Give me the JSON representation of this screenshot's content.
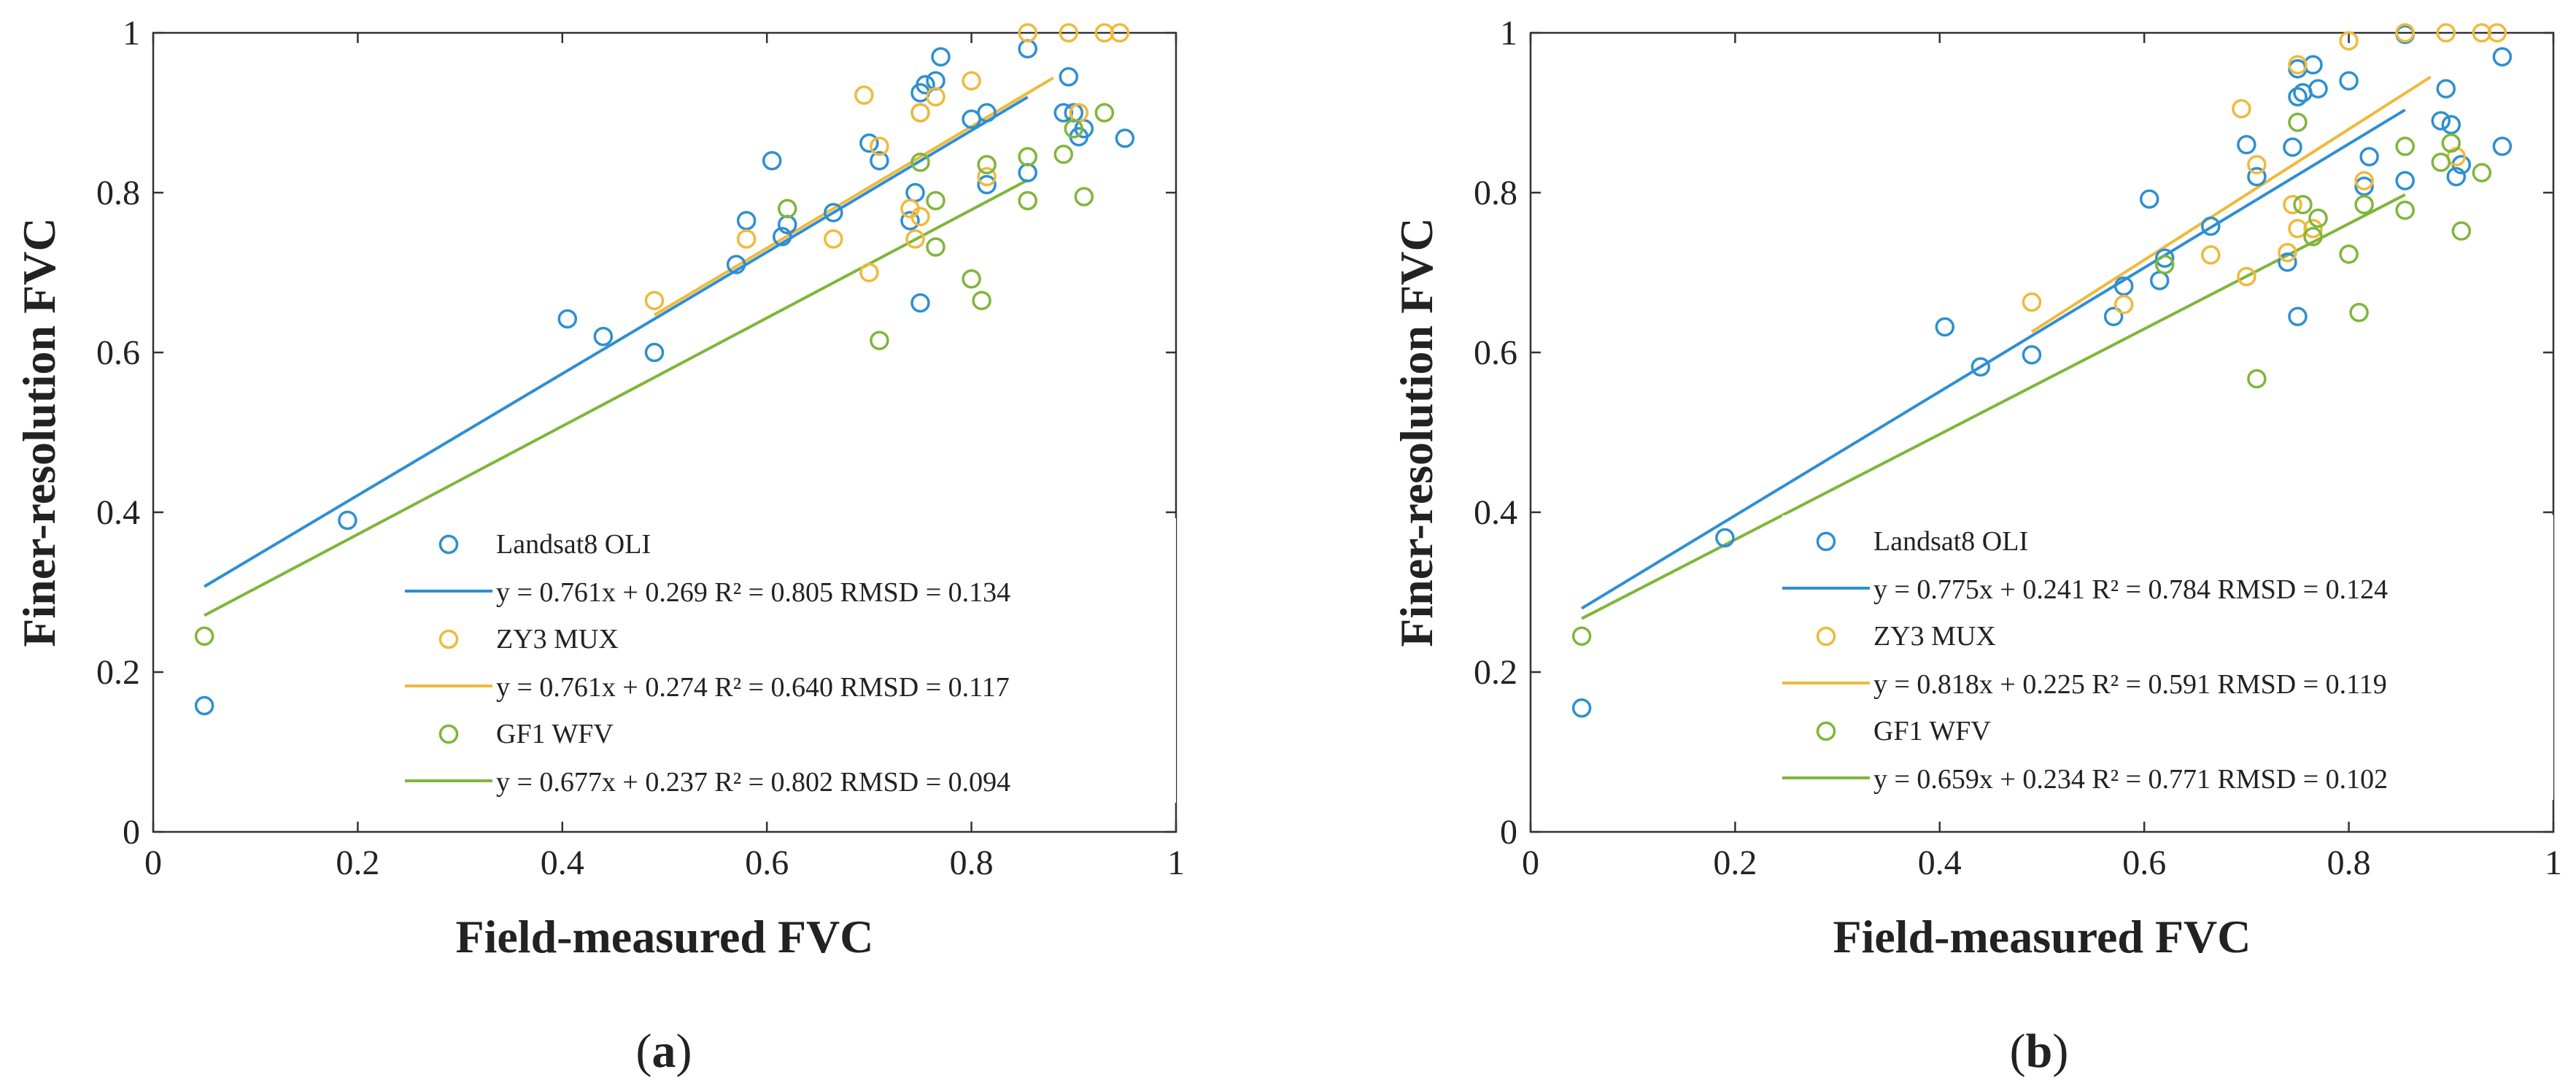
{
  "figure": {
    "panels": [
      {
        "label_letter": "a"
      },
      {
        "label_letter": "b"
      }
    ]
  },
  "chart_data": [
    {
      "type": "scatter",
      "panel": "(a)",
      "xlabel": "Field-measured FVC",
      "ylabel": "Finer-resolution FVC",
      "xlim": [
        0,
        1
      ],
      "ylim": [
        0,
        1
      ],
      "xticks": [
        "0",
        "0.2",
        "0.4",
        "0.6",
        "0.8",
        "1"
      ],
      "yticks": [
        "0",
        "0.2",
        "0.4",
        "0.6",
        "0.8",
        "1"
      ],
      "grid": false,
      "legend_position": "bottom-right",
      "series": [
        {
          "name": "Landsat8 OLI",
          "color": "#2f8fd1",
          "fit": {
            "label": "y = 0.761x + 0.269  R² = 0.805  RMSD = 0.134",
            "slope": 0.761,
            "intercept": 0.269,
            "x_range": [
              0.05,
              0.855
            ]
          },
          "points": [
            [
              0.05,
              0.158
            ],
            [
              0.19,
              0.39
            ],
            [
              0.405,
              0.642
            ],
            [
              0.44,
              0.62
            ],
            [
              0.49,
              0.6
            ],
            [
              0.57,
              0.71
            ],
            [
              0.58,
              0.765
            ],
            [
              0.605,
              0.84
            ],
            [
              0.615,
              0.745
            ],
            [
              0.62,
              0.76
            ],
            [
              0.665,
              0.775
            ],
            [
              0.7,
              0.862
            ],
            [
              0.71,
              0.84
            ],
            [
              0.74,
              0.765
            ],
            [
              0.745,
              0.8
            ],
            [
              0.75,
              0.662
            ],
            [
              0.75,
              0.9
            ],
            [
              0.75,
              0.925
            ],
            [
              0.755,
              0.935
            ],
            [
              0.765,
              0.94
            ],
            [
              0.77,
              0.97
            ],
            [
              0.8,
              0.892
            ],
            [
              0.815,
              0.81
            ],
            [
              0.815,
              0.9
            ],
            [
              0.855,
              0.98
            ],
            [
              0.855,
              0.825
            ],
            [
              0.89,
              0.9
            ],
            [
              0.895,
              0.945
            ],
            [
              0.9,
              0.9
            ],
            [
              0.905,
              0.87
            ],
            [
              0.91,
              0.88
            ],
            [
              0.95,
              0.868
            ]
          ]
        },
        {
          "name": "ZY3 MUX",
          "color": "#f0b93a",
          "fit": {
            "label": "y = 0.761x + 0.274  R² = 0.640  RMSD = 0.117",
            "slope": 0.761,
            "intercept": 0.274,
            "x_range": [
              0.49,
              0.88
            ]
          },
          "points": [
            [
              0.49,
              0.665
            ],
            [
              0.58,
              0.742
            ],
            [
              0.665,
              0.742
            ],
            [
              0.695,
              0.922
            ],
            [
              0.7,
              0.7
            ],
            [
              0.71,
              0.858
            ],
            [
              0.74,
              0.78
            ],
            [
              0.745,
              0.742
            ],
            [
              0.75,
              0.77
            ],
            [
              0.75,
              0.9
            ],
            [
              0.765,
              0.92
            ],
            [
              0.8,
              0.94
            ],
            [
              0.815,
              0.82
            ],
            [
              0.855,
              1.0
            ],
            [
              0.895,
              1.0
            ],
            [
              0.905,
              0.9
            ],
            [
              0.93,
              1.0
            ],
            [
              0.945,
              1.0
            ]
          ]
        },
        {
          "name": "GF1 WFV",
          "color": "#7fb63a",
          "fit": {
            "label": "y = 0.677x + 0.237  R² = 0.802  RMSD = 0.094",
            "slope": 0.677,
            "intercept": 0.237,
            "x_range": [
              0.05,
              0.855
            ]
          },
          "points": [
            [
              0.05,
              0.245
            ],
            [
              0.62,
              0.78
            ],
            [
              0.71,
              0.615
            ],
            [
              0.75,
              0.838
            ],
            [
              0.765,
              0.732
            ],
            [
              0.765,
              0.79
            ],
            [
              0.8,
              0.692
            ],
            [
              0.81,
              0.665
            ],
            [
              0.815,
              0.835
            ],
            [
              0.855,
              0.845
            ],
            [
              0.855,
              0.79
            ],
            [
              0.89,
              0.848
            ],
            [
              0.9,
              0.88
            ],
            [
              0.91,
              0.795
            ],
            [
              0.93,
              0.9
            ]
          ]
        }
      ]
    },
    {
      "type": "scatter",
      "panel": "(b)",
      "xlabel": "Field-measured FVC",
      "ylabel": "Finer-resolution FVC",
      "xlim": [
        0,
        1
      ],
      "ylim": [
        0,
        1
      ],
      "xticks": [
        "0",
        "0.2",
        "0.4",
        "0.6",
        "0.8",
        "1"
      ],
      "yticks": [
        "0",
        "0.2",
        "0.4",
        "0.6",
        "0.8",
        "1"
      ],
      "grid": false,
      "legend_position": "bottom-right",
      "series": [
        {
          "name": "Landsat8 OLI",
          "color": "#2f8fd1",
          "fit": {
            "label": "y = 0.775x + 0.241  R² = 0.784  RMSD = 0.124",
            "slope": 0.775,
            "intercept": 0.241,
            "x_range": [
              0.05,
              0.855
            ]
          },
          "points": [
            [
              0.05,
              0.155
            ],
            [
              0.19,
              0.368
            ],
            [
              0.405,
              0.632
            ],
            [
              0.44,
              0.582
            ],
            [
              0.49,
              0.597
            ],
            [
              0.57,
              0.645
            ],
            [
              0.58,
              0.683
            ],
            [
              0.605,
              0.792
            ],
            [
              0.615,
              0.69
            ],
            [
              0.62,
              0.718
            ],
            [
              0.665,
              0.758
            ],
            [
              0.7,
              0.86
            ],
            [
              0.71,
              0.82
            ],
            [
              0.74,
              0.713
            ],
            [
              0.745,
              0.857
            ],
            [
              0.75,
              0.645
            ],
            [
              0.75,
              0.92
            ],
            [
              0.75,
              0.955
            ],
            [
              0.755,
              0.925
            ],
            [
              0.765,
              0.96
            ],
            [
              0.77,
              0.93
            ],
            [
              0.8,
              0.94
            ],
            [
              0.815,
              0.808
            ],
            [
              0.82,
              0.845
            ],
            [
              0.855,
              0.998
            ],
            [
              0.855,
              0.815
            ],
            [
              0.89,
              0.89
            ],
            [
              0.895,
              0.93
            ],
            [
              0.9,
              0.885
            ],
            [
              0.905,
              0.82
            ],
            [
              0.91,
              0.835
            ],
            [
              0.95,
              0.97
            ],
            [
              0.95,
              0.858
            ]
          ]
        },
        {
          "name": "ZY3 MUX",
          "color": "#f0b93a",
          "fit": {
            "label": "y = 0.818x + 0.225  R² = 0.591  RMSD = 0.119",
            "slope": 0.818,
            "intercept": 0.225,
            "x_range": [
              0.49,
              0.88
            ]
          },
          "points": [
            [
              0.49,
              0.663
            ],
            [
              0.58,
              0.66
            ],
            [
              0.665,
              0.722
            ],
            [
              0.695,
              0.905
            ],
            [
              0.7,
              0.695
            ],
            [
              0.71,
              0.835
            ],
            [
              0.74,
              0.725
            ],
            [
              0.745,
              0.785
            ],
            [
              0.75,
              0.755
            ],
            [
              0.75,
              0.96
            ],
            [
              0.765,
              0.755
            ],
            [
              0.8,
              0.99
            ],
            [
              0.815,
              0.815
            ],
            [
              0.855,
              1.0
            ],
            [
              0.895,
              1.0
            ],
            [
              0.905,
              0.845
            ],
            [
              0.93,
              1.0
            ],
            [
              0.945,
              1.0
            ]
          ]
        },
        {
          "name": "GF1 WFV",
          "color": "#7fb63a",
          "fit": {
            "label": "y = 0.659x + 0.234  R² = 0.771  RMSD = 0.102",
            "slope": 0.659,
            "intercept": 0.234,
            "x_range": [
              0.05,
              0.855
            ]
          },
          "points": [
            [
              0.05,
              0.245
            ],
            [
              0.62,
              0.71
            ],
            [
              0.71,
              0.567
            ],
            [
              0.75,
              0.888
            ],
            [
              0.755,
              0.785
            ],
            [
              0.765,
              0.745
            ],
            [
              0.77,
              0.768
            ],
            [
              0.8,
              0.723
            ],
            [
              0.81,
              0.65
            ],
            [
              0.815,
              0.785
            ],
            [
              0.855,
              0.858
            ],
            [
              0.855,
              0.778
            ],
            [
              0.89,
              0.838
            ],
            [
              0.9,
              0.862
            ],
            [
              0.91,
              0.752
            ],
            [
              0.93,
              0.825
            ]
          ]
        }
      ]
    }
  ]
}
